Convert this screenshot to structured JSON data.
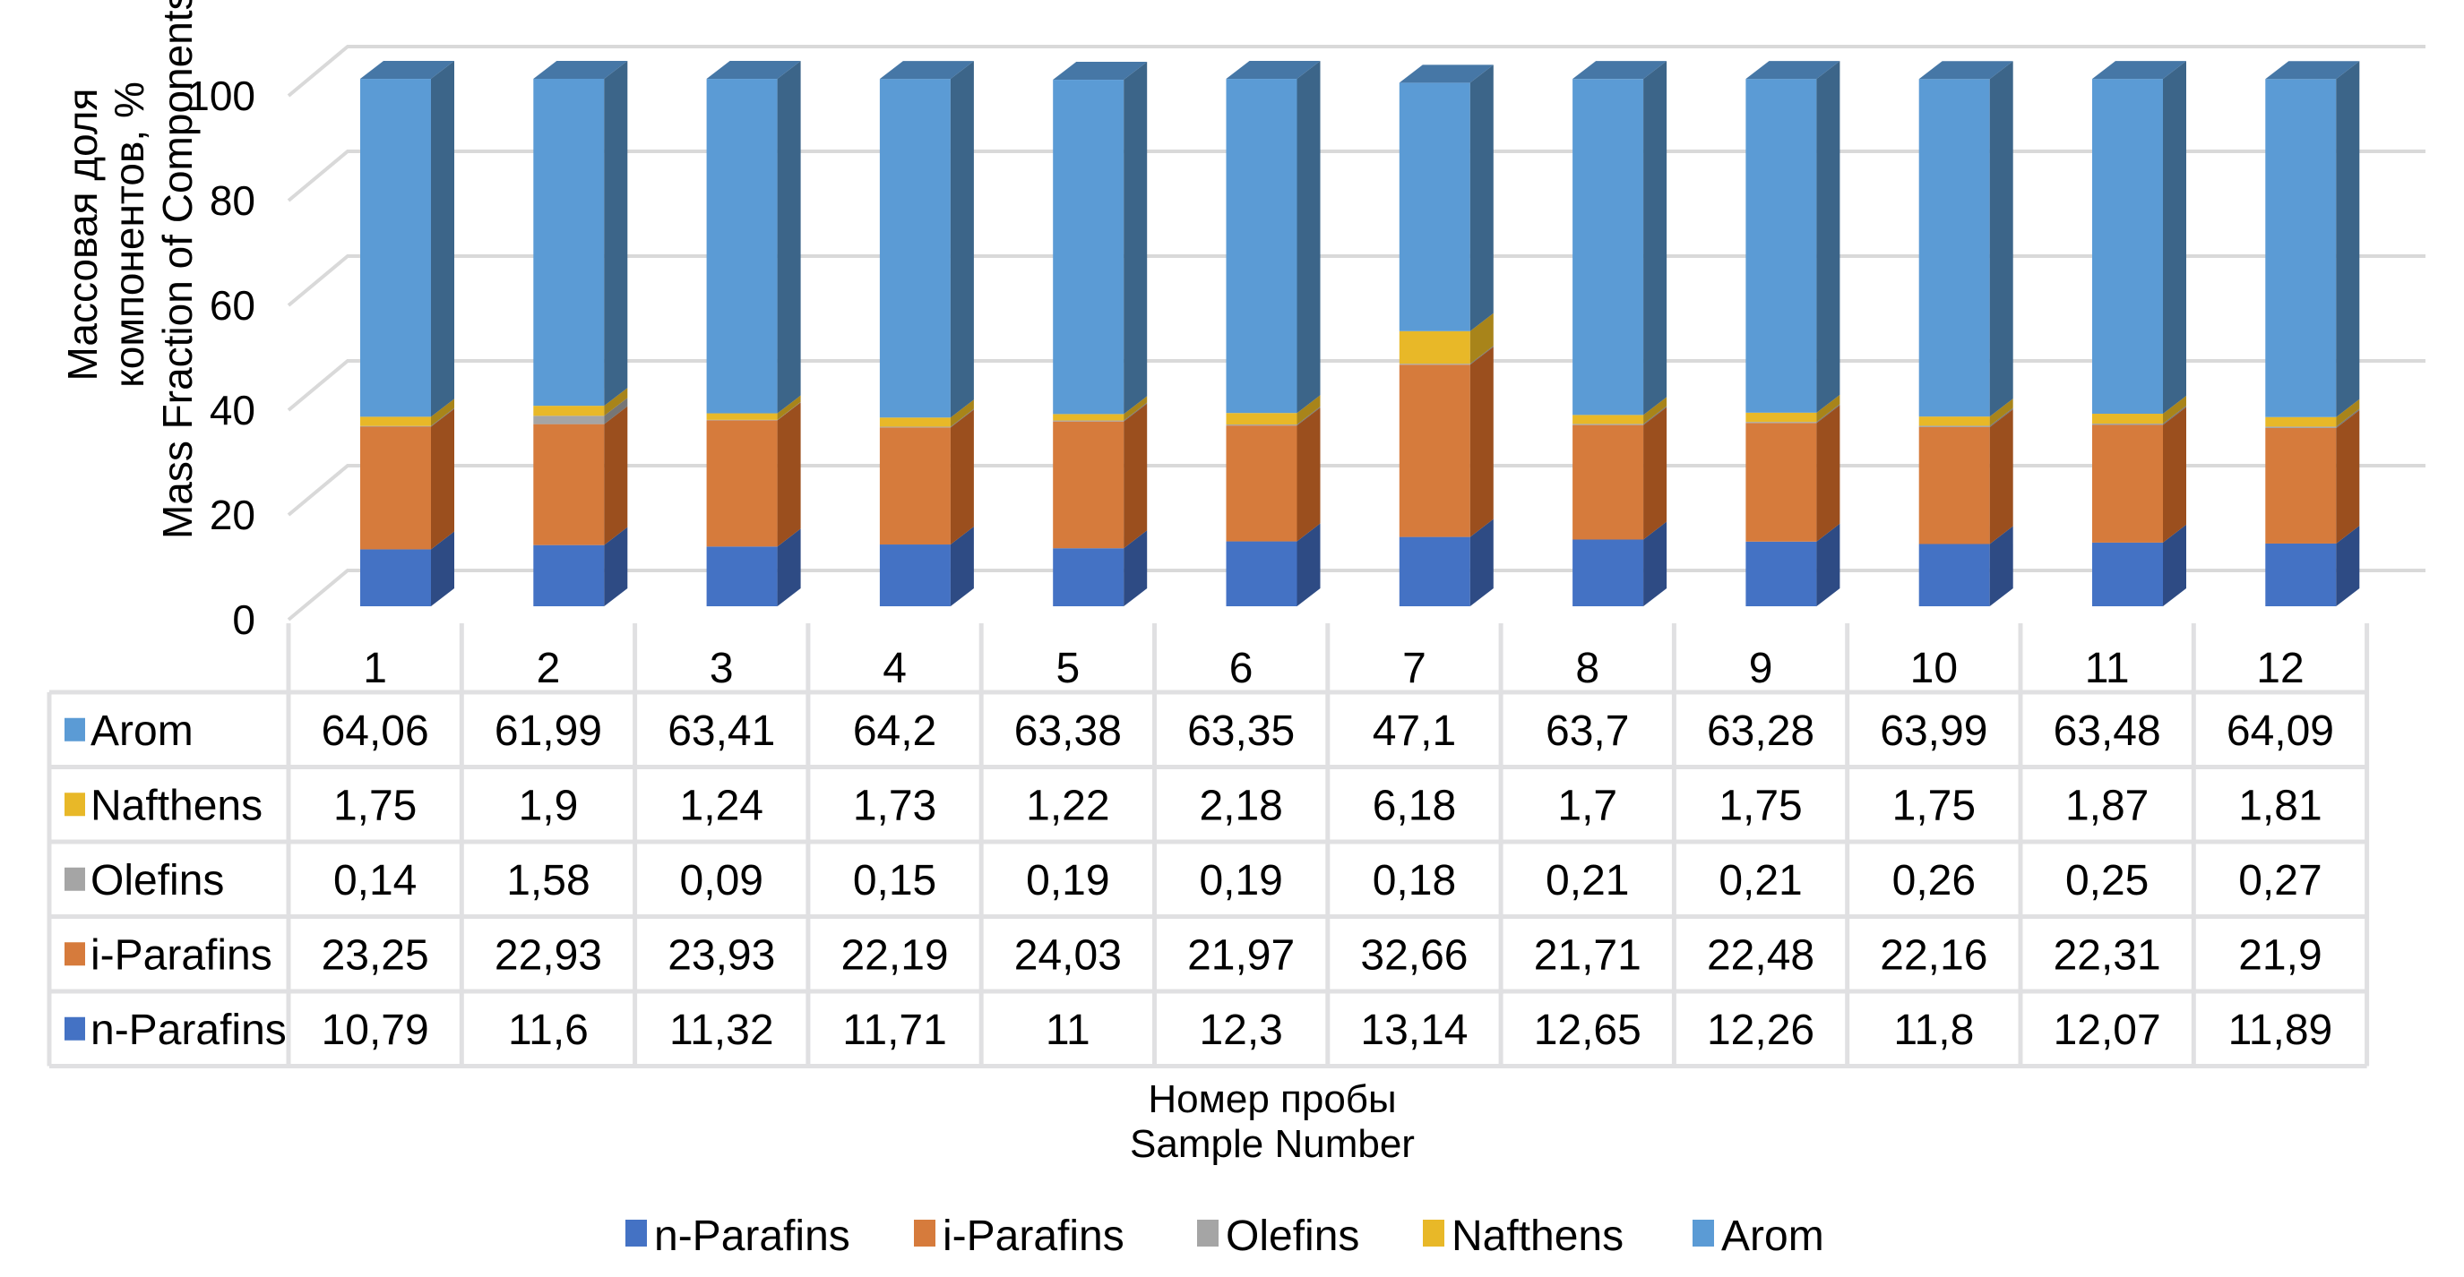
{
  "chart_data": {
    "type": "bar",
    "subtype": "stacked-3d-with-data-table",
    "title": "",
    "xlabel": [
      "Номер пробы",
      "Sample Number"
    ],
    "ylabel": [
      "Массовая доля",
      "компонентов, %",
      "Mass Fraction of Components, %"
    ],
    "ylim": [
      0,
      100
    ],
    "yticks": [
      "0",
      "20",
      "40",
      "60",
      "80",
      "100"
    ],
    "grid": true,
    "legend_position": "bottom",
    "categories": [
      "1",
      "2",
      "3",
      "4",
      "5",
      "6",
      "7",
      "8",
      "9",
      "10",
      "11",
      "12"
    ],
    "series": [
      {
        "name": "n-Parafins",
        "color": "#4472C4",
        "side": "#2E4B84",
        "values": [
          10.79,
          11.6,
          11.32,
          11.71,
          11,
          12.3,
          13.14,
          12.65,
          12.26,
          11.8,
          12.07,
          11.89
        ],
        "labels": [
          "10,79",
          "11,6",
          "11,32",
          "11,71",
          "11",
          "12,3",
          "13,14",
          "12,65",
          "12,26",
          "11,8",
          "12,07",
          "11,89"
        ]
      },
      {
        "name": "i-Parafins",
        "color": "#D67B3C",
        "side": "#9B4F1E",
        "values": [
          23.25,
          22.93,
          23.93,
          22.19,
          24.03,
          21.97,
          32.66,
          21.71,
          22.48,
          22.16,
          22.31,
          21.9
        ],
        "labels": [
          "23,25",
          "22,93",
          "23,93",
          "22,19",
          "24,03",
          "21,97",
          "32,66",
          "21,71",
          "22,48",
          "22,16",
          "22,31",
          "21,9"
        ]
      },
      {
        "name": "Olefins",
        "color": "#A5A5A5",
        "side": "#767676",
        "values": [
          0.14,
          1.58,
          0.09,
          0.15,
          0.19,
          0.19,
          0.18,
          0.21,
          0.21,
          0.26,
          0.25,
          0.27
        ],
        "labels": [
          "0,14",
          "1,58",
          "0,09",
          "0,15",
          "0,19",
          "0,19",
          "0,18",
          "0,21",
          "0,21",
          "0,26",
          "0,25",
          "0,27"
        ]
      },
      {
        "name": "Nafthens",
        "color": "#E8B828",
        "side": "#A8841A",
        "values": [
          1.75,
          1.9,
          1.24,
          1.73,
          1.22,
          2.18,
          6.18,
          1.7,
          1.75,
          1.75,
          1.87,
          1.81
        ],
        "labels": [
          "1,75",
          "1,9",
          "1,24",
          "1,73",
          "1,22",
          "2,18",
          "6,18",
          "1,7",
          "1,75",
          "1,75",
          "1,87",
          "1,81"
        ]
      },
      {
        "name": "Arom",
        "color": "#5B9BD5",
        "side": "#3C6589",
        "values": [
          64.06,
          61.99,
          63.41,
          64.2,
          63.38,
          63.35,
          47.1,
          63.7,
          63.28,
          63.99,
          63.48,
          64.09
        ],
        "labels": [
          "64,06",
          "61,99",
          "63,41",
          "64,2",
          "63,38",
          "63,35",
          "47,1",
          "63,7",
          "63,28",
          "63,99",
          "63,48",
          "64,09"
        ]
      }
    ],
    "table_row_order": [
      "Arom",
      "Nafthens",
      "Olefins",
      "i-Parafins",
      "n-Parafins"
    ],
    "legend_order": [
      "n-Parafins",
      "i-Parafins",
      "Olefins",
      "Nafthens",
      "Arom"
    ],
    "colors": {
      "grid": "#D9D9D9",
      "table_border": "#E0E0E2",
      "top_face": "#4677A6"
    }
  }
}
